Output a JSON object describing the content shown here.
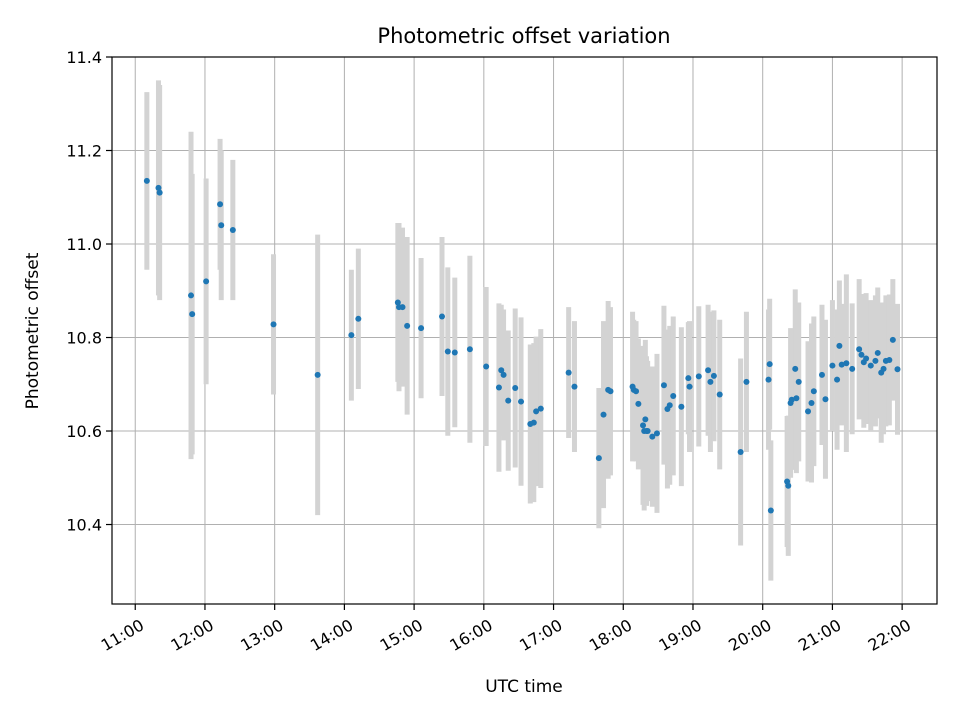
{
  "chart_data": {
    "type": "scatter",
    "title": "Photometric offset variation",
    "xlabel": "UTC time",
    "ylabel": "Photometric offset",
    "xlim": [
      "10:40",
      "22:30"
    ],
    "ylim": [
      10.23,
      11.4
    ],
    "grid": true,
    "x_tick_labels": [
      "11:00",
      "12:00",
      "13:00",
      "14:00",
      "15:00",
      "16:00",
      "17:00",
      "18:00",
      "19:00",
      "20:00",
      "21:00",
      "22:00"
    ],
    "y_ticks": [
      10.4,
      10.6,
      10.8,
      11.0,
      11.2,
      11.4
    ],
    "y_tick_labels": [
      "10.4",
      "10.6",
      "10.8",
      "11.0",
      "11.2",
      "11.4"
    ],
    "colors": {
      "point": "#1f77b4",
      "errorbar": "#d3d3d3",
      "grid": "#b0b0b0"
    },
    "series": [
      {
        "x": [
          "11:10",
          "11:20",
          "11:21",
          "11:48",
          "11:49",
          "12:01",
          "12:13",
          "12:14",
          "12:24",
          "12:59",
          "13:37",
          "14:06",
          "14:12",
          "14:46",
          "14:47",
          "14:50",
          "14:54",
          "15:06",
          "15:24",
          "15:29",
          "15:35",
          "15:48",
          "16:02",
          "16:13",
          "16:15",
          "16:17",
          "16:21",
          "16:27",
          "16:32",
          "16:40",
          "16:43",
          "16:45",
          "16:49",
          "17:13",
          "17:18",
          "17:39",
          "17:43",
          "17:47",
          "17:49",
          "18:08",
          "18:09",
          "18:11",
          "18:13",
          "18:17",
          "18:18",
          "18:19",
          "18:20",
          "18:21",
          "18:25",
          "18:29",
          "18:35",
          "18:38",
          "18:40",
          "18:43",
          "18:50",
          "18:56",
          "18:57",
          "19:05",
          "19:13",
          "19:15",
          "19:18",
          "19:23",
          "19:41",
          "19:46",
          "20:05",
          "20:06",
          "20:07",
          "20:21",
          "20:22",
          "20:24",
          "20:25",
          "20:28",
          "20:29",
          "20:31",
          "20:39",
          "20:42",
          "20:44",
          "20:51",
          "20:54",
          "21:00",
          "21:04",
          "21:06",
          "21:08",
          "21:12",
          "21:17",
          "21:23",
          "21:25",
          "21:27",
          "21:29",
          "21:33",
          "21:37",
          "21:39",
          "21:42",
          "21:44",
          "21:46",
          "21:49",
          "21:52",
          "21:56"
        ],
        "y": [
          11.135,
          11.12,
          11.11,
          10.89,
          10.85,
          10.92,
          11.085,
          11.04,
          11.03,
          10.828,
          10.72,
          10.805,
          10.84,
          10.875,
          10.865,
          10.865,
          10.825,
          10.82,
          10.845,
          10.77,
          10.768,
          10.775,
          10.738,
          10.693,
          10.73,
          10.72,
          10.665,
          10.692,
          10.663,
          10.615,
          10.618,
          10.642,
          10.648,
          10.725,
          10.695,
          10.542,
          10.635,
          10.688,
          10.685,
          10.695,
          10.688,
          10.685,
          10.658,
          10.612,
          10.6,
          10.625,
          10.6,
          10.6,
          10.588,
          10.595,
          10.698,
          10.647,
          10.655,
          10.675,
          10.652,
          10.713,
          10.695,
          10.717,
          10.73,
          10.705,
          10.718,
          10.678,
          10.555,
          10.705,
          10.71,
          10.743,
          10.43,
          10.492,
          10.483,
          10.66,
          10.667,
          10.733,
          10.67,
          10.705,
          10.642,
          10.66,
          10.685,
          10.72,
          10.668,
          10.74,
          10.71,
          10.782,
          10.742,
          10.745,
          10.733,
          10.775,
          10.763,
          10.747,
          10.755,
          10.74,
          10.75,
          10.767,
          10.725,
          10.733,
          10.75,
          10.752,
          10.795,
          10.732
        ],
        "err": [
          0.19,
          0.23,
          0.23,
          0.35,
          0.3,
          0.22,
          0.14,
          0.16,
          0.15,
          0.15,
          0.3,
          0.14,
          0.15,
          0.17,
          0.18,
          0.17,
          0.19,
          0.15,
          0.17,
          0.18,
          0.16,
          0.2,
          0.17,
          0.18,
          0.14,
          0.14,
          0.15,
          0.17,
          0.18,
          0.17,
          0.17,
          0.16,
          0.17,
          0.14,
          0.14,
          0.15,
          0.2,
          0.19,
          0.18,
          0.16,
          0.15,
          0.15,
          0.14,
          0.17,
          0.17,
          0.17,
          0.16,
          0.15,
          0.15,
          0.17,
          0.17,
          0.17,
          0.17,
          0.17,
          0.17,
          0.12,
          0.14,
          0.15,
          0.14,
          0.15,
          0.14,
          0.16,
          0.2,
          0.15,
          0.15,
          0.14,
          0.15,
          0.14,
          0.15,
          0.16,
          0.15,
          0.17,
          0.16,
          0.17,
          0.15,
          0.17,
          0.16,
          0.15,
          0.17,
          0.14,
          0.15,
          0.14,
          0.13,
          0.19,
          0.14,
          0.15,
          0.13,
          0.14,
          0.14,
          0.14,
          0.14,
          0.14,
          0.15,
          0.14,
          0.14,
          0.14,
          0.13,
          0.14
        ]
      }
    ]
  }
}
